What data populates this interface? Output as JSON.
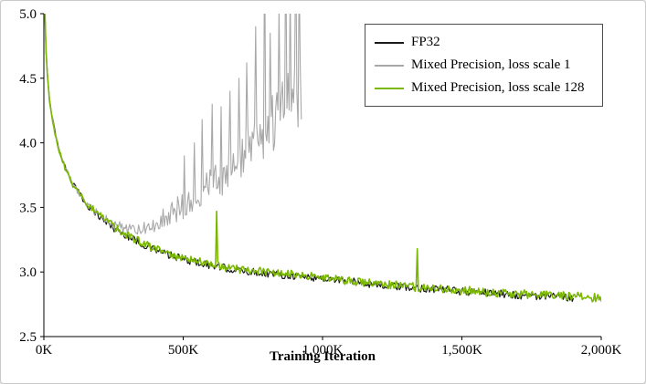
{
  "page": {
    "background": "#ffffff",
    "border_color": "#cbcbcb"
  },
  "chart_data": {
    "type": "line",
    "title": "",
    "xlabel": "Training Iteration",
    "ylabel": "",
    "xlim": [
      0,
      2000
    ],
    "ylim": [
      2.5,
      5.0
    ],
    "grid": false,
    "legend_position": "top-right",
    "axis_color": "#000000",
    "x_ticks": [
      {
        "value": 0,
        "label": "0K"
      },
      {
        "value": 500,
        "label": "500K"
      },
      {
        "value": 1000,
        "label": "1,000K"
      },
      {
        "value": 1500,
        "label": "1,500K"
      },
      {
        "value": 2000,
        "label": "2,000K"
      }
    ],
    "y_ticks": [
      {
        "value": 2.5,
        "label": "2.5"
      },
      {
        "value": 3.0,
        "label": "3.0"
      },
      {
        "value": 3.5,
        "label": "3.5"
      },
      {
        "value": 4.0,
        "label": "4.0"
      },
      {
        "value": 4.5,
        "label": "4.5"
      },
      {
        "value": 5.0,
        "label": "5.0"
      }
    ],
    "series": [
      {
        "name": "FP32",
        "color": "#1a1a1a",
        "line_width": 1.2,
        "x_end": 1900,
        "keypoints": [
          [
            0,
            5.6
          ],
          [
            5,
            4.85
          ],
          [
            10,
            4.6
          ],
          [
            20,
            4.35
          ],
          [
            30,
            4.2
          ],
          [
            50,
            3.98
          ],
          [
            75,
            3.82
          ],
          [
            100,
            3.7
          ],
          [
            150,
            3.53
          ],
          [
            200,
            3.43
          ],
          [
            250,
            3.34
          ],
          [
            300,
            3.28
          ],
          [
            350,
            3.22
          ],
          [
            400,
            3.17
          ],
          [
            450,
            3.13
          ],
          [
            500,
            3.1
          ],
          [
            600,
            3.05
          ],
          [
            700,
            3.01
          ],
          [
            800,
            2.99
          ],
          [
            900,
            2.97
          ],
          [
            1000,
            2.95
          ],
          [
            1100,
            2.93
          ],
          [
            1200,
            2.9
          ],
          [
            1300,
            2.88
          ],
          [
            1400,
            2.87
          ],
          [
            1500,
            2.85
          ],
          [
            1600,
            2.84
          ],
          [
            1700,
            2.82
          ],
          [
            1800,
            2.81
          ],
          [
            1900,
            2.8
          ]
        ],
        "noise": [
          [
            0,
            0.012
          ],
          [
            100,
            0.022
          ],
          [
            250,
            0.03
          ],
          [
            1900,
            0.03
          ]
        ],
        "spikes": []
      },
      {
        "name": "Mixed Precision, loss scale 1",
        "color": "#a8a8a8",
        "line_width": 1.1,
        "x_end": 925,
        "keypoints": [
          [
            0,
            5.6
          ],
          [
            5,
            4.85
          ],
          [
            10,
            4.6
          ],
          [
            20,
            4.35
          ],
          [
            30,
            4.2
          ],
          [
            50,
            3.98
          ],
          [
            75,
            3.82
          ],
          [
            100,
            3.7
          ],
          [
            150,
            3.53
          ],
          [
            200,
            3.44
          ],
          [
            250,
            3.37
          ],
          [
            300,
            3.33
          ],
          [
            350,
            3.33
          ],
          [
            400,
            3.38
          ],
          [
            450,
            3.45
          ],
          [
            500,
            3.52
          ],
          [
            550,
            3.6
          ],
          [
            600,
            3.68
          ],
          [
            650,
            3.76
          ],
          [
            700,
            3.86
          ],
          [
            750,
            3.97
          ],
          [
            800,
            4.12
          ],
          [
            850,
            4.22
          ],
          [
            900,
            4.35
          ],
          [
            925,
            4.4
          ]
        ],
        "noise": [
          [
            0,
            0.012
          ],
          [
            100,
            0.022
          ],
          [
            250,
            0.035
          ],
          [
            350,
            0.05
          ],
          [
            450,
            0.09
          ],
          [
            550,
            0.13
          ],
          [
            650,
            0.16
          ],
          [
            750,
            0.2
          ],
          [
            850,
            0.24
          ],
          [
            925,
            0.28
          ]
        ],
        "spikes": [
          [
            505,
            3.9
          ],
          [
            540,
            4.0
          ],
          [
            568,
            4.18
          ],
          [
            602,
            4.3
          ],
          [
            636,
            4.28
          ],
          [
            668,
            4.4
          ],
          [
            700,
            4.5
          ],
          [
            728,
            4.62
          ],
          [
            760,
            4.9
          ],
          [
            790,
            5.55
          ],
          [
            812,
            4.85
          ],
          [
            845,
            5.05
          ],
          [
            866,
            5.6
          ],
          [
            884,
            5.2
          ],
          [
            902,
            5.6
          ],
          [
            916,
            5.35
          ]
        ]
      },
      {
        "name": "Mixed Precision, loss scale 128",
        "color": "#7ab800",
        "line_width": 1.6,
        "x_end": 2000,
        "keypoints": [
          [
            0,
            5.6
          ],
          [
            5,
            4.85
          ],
          [
            10,
            4.6
          ],
          [
            20,
            4.33
          ],
          [
            30,
            4.18
          ],
          [
            50,
            3.97
          ],
          [
            75,
            3.81
          ],
          [
            100,
            3.69
          ],
          [
            150,
            3.54
          ],
          [
            200,
            3.44
          ],
          [
            250,
            3.35
          ],
          [
            300,
            3.28
          ],
          [
            350,
            3.23
          ],
          [
            400,
            3.18
          ],
          [
            450,
            3.14
          ],
          [
            500,
            3.11
          ],
          [
            600,
            3.06
          ],
          [
            700,
            3.02
          ],
          [
            800,
            3.0
          ],
          [
            900,
            2.98
          ],
          [
            1000,
            2.96
          ],
          [
            1100,
            2.93
          ],
          [
            1200,
            2.91
          ],
          [
            1300,
            2.89
          ],
          [
            1400,
            2.87
          ],
          [
            1500,
            2.86
          ],
          [
            1600,
            2.84
          ],
          [
            1700,
            2.83
          ],
          [
            1800,
            2.82
          ],
          [
            1900,
            2.81
          ],
          [
            2000,
            2.8
          ]
        ],
        "noise": [
          [
            0,
            0.012
          ],
          [
            100,
            0.022
          ],
          [
            250,
            0.03
          ],
          [
            2000,
            0.035
          ]
        ],
        "spikes": [
          [
            620,
            3.47
          ],
          [
            1340,
            3.18
          ]
        ]
      }
    ],
    "legend": {
      "entries": [
        "FP32",
        "Mixed Precision, loss scale 1",
        "Mixed Precision, loss scale 128"
      ]
    }
  }
}
